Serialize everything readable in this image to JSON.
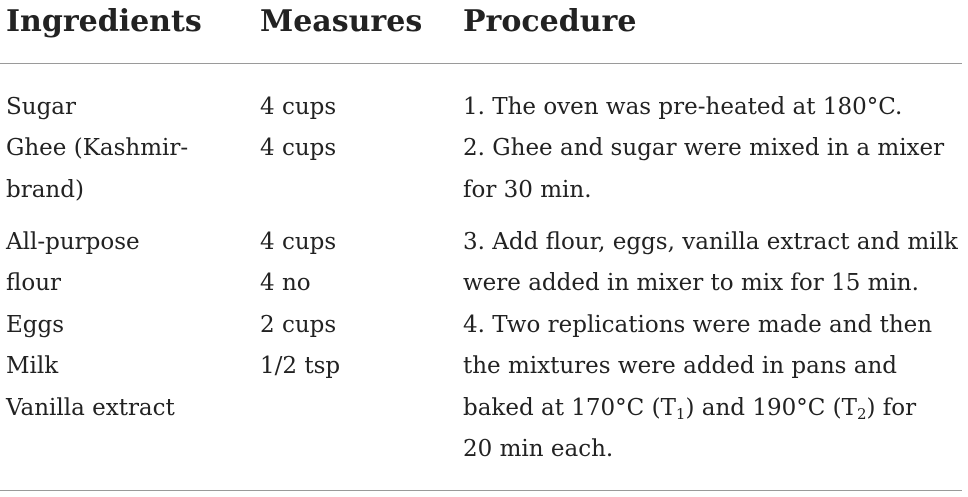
{
  "headers": {
    "ingredients": "Ingredients",
    "measures": "Measures",
    "procedure": "Procedure"
  },
  "ingredients": [
    "Sugar",
    "Ghee (Kashmir-",
    "brand)",
    "All-purpose",
    "flour",
    "Eggs",
    "Milk",
    "Vanilla extract"
  ],
  "measures": [
    "4 cups",
    "4 cups",
    "4 cups",
    "4 no",
    "2 cups",
    "1/2 tsp"
  ],
  "procedure": [
    "1. The oven was pre-heated at 180°C.",
    "2. Ghee and sugar were mixed in a mixer",
    "for 30 min.",
    "3. Add flour, eggs, vanilla extract and milk",
    "were added in mixer to mix for 15 min.",
    "4. Two replications were made and then",
    "the mixtures were added in pans and"
  ],
  "last_line": {
    "part1": "baked at 170°C (T",
    "sub1": "1",
    "part2": ") and 190°C (T",
    "sub2": "2",
    "part3": ") for"
  },
  "final_line": "20 min each."
}
